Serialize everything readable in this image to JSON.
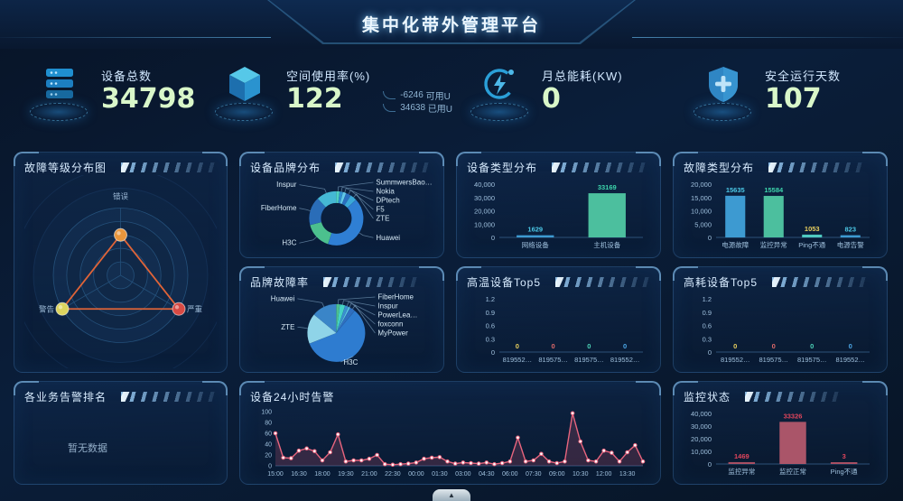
{
  "app": {
    "title": "集中化带外管理平台",
    "collapse_icon": "▲"
  },
  "stats": [
    {
      "icon": "server-icon",
      "label": "设备总数",
      "value": "34798"
    },
    {
      "icon": "cube-icon",
      "label": "空间使用率(%)",
      "value": "122",
      "extra": [
        {
          "num": "-6246",
          "unit": "可用U"
        },
        {
          "num": "34638",
          "unit": "已用U"
        }
      ]
    },
    {
      "icon": "bolt-icon",
      "label": "月总能耗(KW)",
      "value": "0"
    },
    {
      "icon": "shield-icon",
      "label": "安全运行天数",
      "value": "107"
    }
  ],
  "panels": {
    "fault_level": {
      "title": "故障等级分布图"
    },
    "brand_dist": {
      "title": "设备品牌分布"
    },
    "device_type": {
      "title": "设备类型分布"
    },
    "fault_type": {
      "title": "故障类型分布"
    },
    "brand_fault": {
      "title": "品牌故障率"
    },
    "high_temp": {
      "title": "高温设备Top5"
    },
    "high_power": {
      "title": "高耗设备Top5"
    },
    "biz_alarm": {
      "title": "各业务告警排名",
      "empty_text": "暂无数据"
    },
    "alarm_24h": {
      "title": "设备24小时告警"
    },
    "monitor_status": {
      "title": "监控状态"
    }
  },
  "chart_data": [
    {
      "id": "fault_level",
      "type": "radar",
      "title": "故障等级分布图",
      "axes": [
        "错误",
        "严重",
        "警告"
      ],
      "max": 100,
      "values": [
        60,
        100,
        100
      ],
      "point_colors": [
        "#e8963c",
        "#d84a44",
        "#dcd45e"
      ],
      "line_color": "#e06438"
    },
    {
      "id": "brand_dist",
      "type": "pie",
      "donut": true,
      "title": "设备品牌分布",
      "labels": [
        "SummwersBao…",
        "Nokia",
        "DPtech",
        "F5",
        "ZTE",
        "Huawei",
        "H3C",
        "FiberHome",
        "Inspur"
      ],
      "values": [
        2,
        2,
        2,
        3,
        4,
        42,
        16,
        17,
        12
      ],
      "colors": [
        "#4fd2c2",
        "#2f8fd0",
        "#61c8e8",
        "#2a6fc0",
        "#3aa8d8",
        "#2f7fd4",
        "#4cc08e",
        "#2a6db8",
        "#45b8d4"
      ]
    },
    {
      "id": "device_type",
      "type": "bar",
      "title": "设备类型分布",
      "categories": [
        "网络设备",
        "主机设备"
      ],
      "values": [
        1629,
        33169
      ],
      "yticks": [
        0,
        10000,
        20000,
        30000,
        40000
      ],
      "ymax": 40000,
      "bar_colors": [
        "#3d9ad1",
        "#4cbf9e"
      ],
      "value_colors": [
        "#4cc9e8",
        "#3dd6ad"
      ]
    },
    {
      "id": "fault_type",
      "type": "bar",
      "title": "故障类型分布",
      "categories": [
        "电源故障",
        "监控异常",
        "Ping不通",
        "电源告警"
      ],
      "values": [
        15635,
        15584,
        1053,
        823
      ],
      "yticks": [
        0,
        5000,
        10000,
        15000,
        20000
      ],
      "ymax": 20000,
      "bar_colors": [
        "#3d9ad1",
        "#4cbf9e",
        "#4fc9c0",
        "#3d9ad1"
      ],
      "value_colors": [
        "#4cc9e8",
        "#3dd6ad",
        "#e8cf5e",
        "#4cc9e8"
      ]
    },
    {
      "id": "brand_fault",
      "type": "pie",
      "donut": false,
      "title": "品牌故障率",
      "labels": [
        "FiberHome",
        "Inspur",
        "PowerLea…",
        "foxconn",
        "MyPower",
        "H3C",
        "ZTE",
        "Huawei"
      ],
      "values": [
        2,
        3,
        2,
        1,
        3,
        58,
        17,
        14
      ],
      "colors": [
        "#4cc08e",
        "#45d4c4",
        "#3a8fd0",
        "#5bc8e8",
        "#2f6fc0",
        "#2e7cd0",
        "#8fd4e8",
        "#3a85c8"
      ],
      "label_sides": [
        "right",
        "right",
        "right",
        "right",
        "right",
        "bottom",
        "left",
        "left"
      ]
    },
    {
      "id": "high_temp",
      "type": "bar",
      "title": "高温设备Top5",
      "categories": [
        "819552…",
        "819575…",
        "819575…",
        "819552…"
      ],
      "values": [
        0,
        0,
        0,
        0
      ],
      "yticks": [
        0,
        0.3,
        0.6,
        0.9,
        1.2
      ],
      "ymax": 1.2,
      "bar_colors": [
        "#e8cf5e",
        "#e06a6a",
        "#4cd4b8",
        "#4ca8e8"
      ],
      "value_colors": [
        "#e8cf5e",
        "#e06a6a",
        "#4cd4b8",
        "#4ca8e8"
      ]
    },
    {
      "id": "high_power",
      "type": "bar",
      "title": "高耗设备Top5",
      "categories": [
        "819552…",
        "819575…",
        "819575…",
        "819552…"
      ],
      "values": [
        0,
        0,
        0,
        0
      ],
      "yticks": [
        0,
        0.3,
        0.6,
        0.9,
        1.2
      ],
      "ymax": 1.2,
      "bar_colors": [
        "#e8cf5e",
        "#e06a6a",
        "#4cd4b8",
        "#4ca8e8"
      ],
      "value_colors": [
        "#e8cf5e",
        "#e06a6a",
        "#4cd4b8",
        "#4ca8e8"
      ]
    },
    {
      "id": "alarm_24h",
      "type": "line",
      "title": "设备24小时告警",
      "x_labels": [
        "15:00",
        "16:30",
        "18:00",
        "19:30",
        "21:00",
        "22:30",
        "00:00",
        "01:30",
        "03:00",
        "04:30",
        "06:00",
        "07:30",
        "09:00",
        "10:30",
        "12:00",
        "13:30"
      ],
      "label_every": 3,
      "values": [
        60,
        15,
        14,
        28,
        32,
        27,
        10,
        25,
        58,
        8,
        10,
        10,
        13,
        20,
        3,
        2,
        3,
        4,
        6,
        13,
        15,
        16,
        8,
        4,
        6,
        5,
        4,
        6,
        3,
        5,
        8,
        52,
        8,
        10,
        22,
        8,
        5,
        8,
        97,
        45,
        10,
        8,
        28,
        24,
        8,
        25,
        38,
        8
      ],
      "yticks": [
        0,
        20,
        40,
        60,
        80,
        100
      ],
      "ymax": 100,
      "line_color": "#e8657e",
      "area_color": "rgba(220,90,120,0.20)"
    },
    {
      "id": "monitor_status",
      "type": "bar",
      "title": "监控状态",
      "categories": [
        "监控异常",
        "监控正常",
        "Ping不通"
      ],
      "values": [
        1469,
        33326,
        3
      ],
      "yticks": [
        0,
        10000,
        20000,
        30000,
        40000
      ],
      "ymax": 40000,
      "bar_colors": [
        "#a84f63",
        "#aa5569",
        "#a84f63"
      ],
      "value_colors": [
        "#e0455c",
        "#e0455c",
        "#e0455c"
      ]
    }
  ]
}
